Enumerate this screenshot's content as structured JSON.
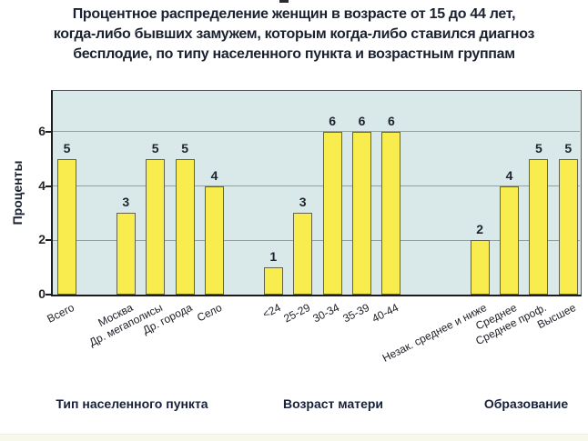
{
  "title": {
    "lines": [
      "Процентное распределение женщин в возрасте от 15 до 44 лет,",
      "когда-либо бывших замужем, которым когда-либо ставился диагноз",
      "бесплодие, по типу населенного пункта и возрастным группам"
    ]
  },
  "chart_data": {
    "type": "bar",
    "title": "Процентное распределение женщин в возрасте от 15 до 44 лет, когда-либо бывших замужем, которым когда-либо ставился диагноз бесплодие, по типу населенного пункта и возрастным группам",
    "ylabel": "Проценты",
    "ylim": [
      0,
      7.5
    ],
    "yticks": [
      0,
      2,
      4,
      6
    ],
    "grid": true,
    "groups": [
      {
        "label": "Тип населенного пункта",
        "categories": [
          "Всего",
          "Москва",
          "Др. мегаполисы",
          "Др. города",
          "Село"
        ],
        "values": [
          5,
          3,
          5,
          5,
          4
        ]
      },
      {
        "label": "Возраст матери",
        "categories": [
          "<24",
          "25-29",
          "30-34",
          "35-39",
          "40-44"
        ],
        "values": [
          1,
          3,
          6,
          6,
          6
        ]
      },
      {
        "label": "Образование",
        "categories": [
          "Незак. среднее и ниже",
          "Среднее",
          "Среднее проф.",
          "Высшее"
        ],
        "values": [
          2,
          4,
          5,
          5
        ]
      }
    ],
    "colors": {
      "bar_fill": "#f8ec4f",
      "bar_border": "#63634c",
      "plot_bg": "#d9e9e9",
      "grid": "#93a0a0",
      "axis": "#1c1c1c",
      "value_text": "#1f2330",
      "tick_text": "#2b242c"
    }
  }
}
